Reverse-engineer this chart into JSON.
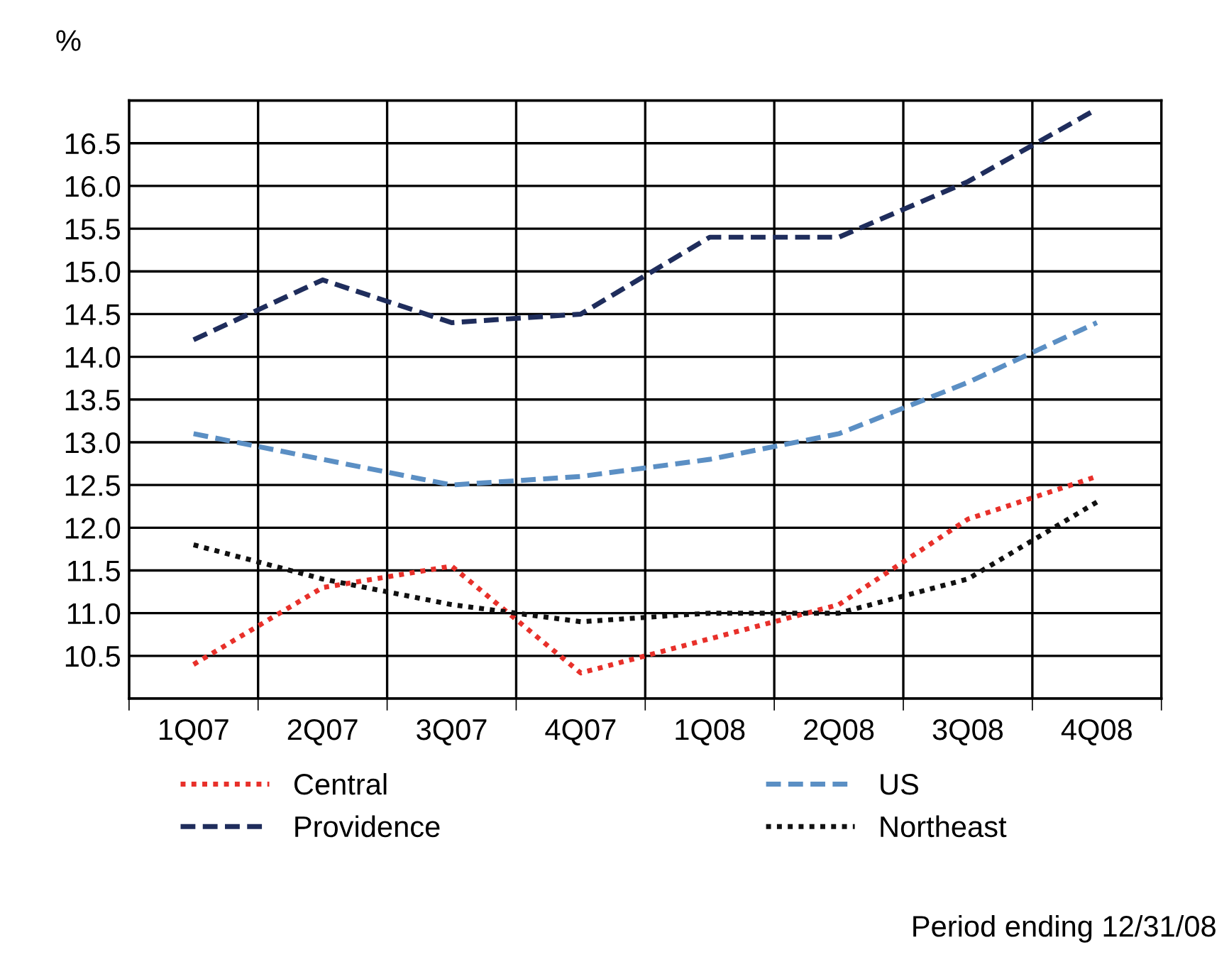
{
  "chart_data": {
    "type": "line",
    "ylabel": "%",
    "categories": [
      "1Q07",
      "2Q07",
      "3Q07",
      "4Q07",
      "1Q08",
      "2Q08",
      "3Q08",
      "4Q08"
    ],
    "series": [
      {
        "name": "Central",
        "color": "#e8302a",
        "line_style": "dotted",
        "values": [
          10.4,
          11.3,
          11.55,
          10.3,
          10.7,
          11.1,
          12.1,
          12.6
        ]
      },
      {
        "name": "Providence",
        "color": "#1f2d5c",
        "line_style": "dashed",
        "values": [
          14.2,
          14.9,
          14.4,
          14.5,
          15.4,
          15.4,
          16.05,
          16.9
        ]
      },
      {
        "name": "US",
        "color": "#5b8fc4",
        "line_style": "dashed",
        "values": [
          13.1,
          12.8,
          12.5,
          12.6,
          12.8,
          13.1,
          13.7,
          14.4
        ]
      },
      {
        "name": "Northeast",
        "color": "#111111",
        "line_style": "dotted",
        "values": [
          11.8,
          11.4,
          11.1,
          10.9,
          11.0,
          11.0,
          11.4,
          12.3
        ]
      }
    ],
    "ylim": [
      10,
      17
    ],
    "yticks": [
      {
        "value": 10,
        "label": null
      },
      10.5,
      {
        "value": 11,
        "label": "11.0"
      },
      11.5,
      {
        "value": 12,
        "label": "12.0"
      },
      12.5,
      {
        "value": 13,
        "label": "13.0"
      },
      13.5,
      {
        "value": 14,
        "label": "14.0"
      },
      14.5,
      {
        "value": 15,
        "label": "15.0"
      },
      15.5,
      {
        "value": 16,
        "label": "16.0"
      },
      16.5,
      {
        "value": 17,
        "label": null
      }
    ],
    "grid": true,
    "legend": "bottom",
    "annotations": [
      "Period ending 12/31/08"
    ]
  }
}
